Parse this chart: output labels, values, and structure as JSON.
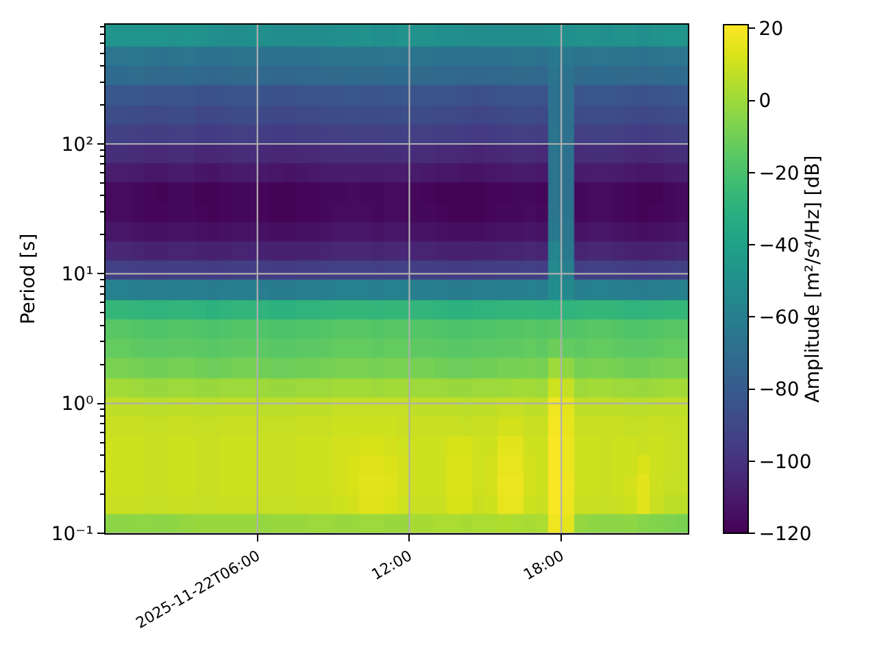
{
  "chart_data": {
    "type": "heatmap",
    "ylabel": "Period [s]",
    "clabel": "Amplitude [m²/s⁴/Hz] [dB]",
    "log": "y",
    "grid": true,
    "x": [
      "2025-11-22T00:15",
      "2025-11-22T00:45",
      "2025-11-22T01:15",
      "2025-11-22T01:45",
      "2025-11-22T02:15",
      "2025-11-22T02:45",
      "2025-11-22T03:15",
      "2025-11-22T03:45",
      "2025-11-22T04:15",
      "2025-11-22T04:45",
      "2025-11-22T05:15",
      "2025-11-22T05:45",
      "2025-11-22T06:15",
      "2025-11-22T06:45",
      "2025-11-22T07:15",
      "2025-11-22T07:45",
      "2025-11-22T08:15",
      "2025-11-22T08:45",
      "2025-11-22T09:15",
      "2025-11-22T09:45",
      "2025-11-22T10:15",
      "2025-11-22T10:45",
      "2025-11-22T11:15",
      "2025-11-22T11:45",
      "2025-11-22T12:15",
      "2025-11-22T12:45",
      "2025-11-22T13:15",
      "2025-11-22T13:45",
      "2025-11-22T14:15",
      "2025-11-22T14:45",
      "2025-11-22T15:15",
      "2025-11-22T15:45",
      "2025-11-22T16:15",
      "2025-11-22T16:45",
      "2025-11-22T17:15",
      "2025-11-22T17:45",
      "2025-11-22T18:15",
      "2025-11-22T18:45",
      "2025-11-22T19:15",
      "2025-11-22T19:45",
      "2025-11-22T20:15",
      "2025-11-22T20:45",
      "2025-11-22T21:15",
      "2025-11-22T21:45",
      "2025-11-22T22:15",
      "2025-11-22T22:45"
    ],
    "y": [
      668,
      473,
      335,
      237,
      168,
      119,
      84.1,
      59.6,
      42.2,
      29.9,
      21.1,
      15.0,
      10.6,
      7.5,
      5.31,
      3.76,
      2.66,
      1.88,
      1.33,
      0.944,
      0.668,
      0.473,
      0.335,
      0.237,
      0.168,
      0.119
    ],
    "cells": [
      [
        -48,
        -48,
        -47,
        -48,
        -48,
        -49,
        -48,
        -49,
        -50,
        -51,
        -51,
        -50,
        -50,
        -52,
        -52,
        -51,
        -52,
        -51,
        -50,
        -50,
        -49,
        -50,
        -50,
        -49,
        -49,
        -49,
        -50,
        -50,
        -51,
        -51,
        -52,
        -52,
        -51,
        -51,
        -51,
        -50,
        -50,
        -49,
        -49,
        -50,
        -49,
        -49,
        -50,
        -49,
        -48,
        -48
      ],
      [
        -65,
        -65,
        -64,
        -66,
        -67,
        -66,
        -65,
        -67,
        -68,
        -67,
        -66,
        -66,
        -67,
        -68,
        -68,
        -67,
        -67,
        -66,
        -66,
        -65,
        -66,
        -66,
        -65,
        -65,
        -66,
        -66,
        -67,
        -67,
        -68,
        -68,
        -67,
        -67,
        -66,
        -66,
        -67,
        -64,
        -64,
        -66,
        -65,
        -65,
        -66,
        -66,
        -67,
        -66,
        -65,
        -65
      ],
      [
        -71,
        -71,
        -70,
        -72,
        -73,
        -72,
        -71,
        -73,
        -74,
        -73,
        -72,
        -72,
        -73,
        -74,
        -74,
        -73,
        -73,
        -72,
        -72,
        -71,
        -72,
        -72,
        -71,
        -71,
        -72,
        -72,
        -73,
        -73,
        -74,
        -74,
        -73,
        -73,
        -72,
        -72,
        -73,
        -66,
        -67,
        -72,
        -71,
        -71,
        -72,
        -72,
        -73,
        -72,
        -71,
        -71
      ],
      [
        -82,
        -82,
        -82,
        -83,
        -84,
        -83,
        -83,
        -85,
        -85,
        -84,
        -83,
        -83,
        -84,
        -85,
        -85,
        -84,
        -84,
        -83,
        -83,
        -82,
        -83,
        -83,
        -82,
        -82,
        -83,
        -83,
        -84,
        -84,
        -85,
        -86,
        -85,
        -84,
        -83,
        -83,
        -84,
        -67,
        -68,
        -83,
        -82,
        -82,
        -83,
        -84,
        -85,
        -84,
        -83,
        -82
      ],
      [
        -87,
        -87,
        -88,
        -89,
        -89,
        -88,
        -88,
        -90,
        -90,
        -89,
        -88,
        -88,
        -89,
        -90,
        -90,
        -89,
        -89,
        -88,
        -88,
        -87,
        -88,
        -88,
        -87,
        -87,
        -88,
        -88,
        -89,
        -89,
        -90,
        -91,
        -90,
        -89,
        -88,
        -88,
        -89,
        -67,
        -68,
        -88,
        -87,
        -87,
        -88,
        -89,
        -90,
        -89,
        -88,
        -87
      ],
      [
        -93,
        -93,
        -94,
        -95,
        -95,
        -94,
        -94,
        -96,
        -96,
        -95,
        -94,
        -94,
        -95,
        -96,
        -96,
        -95,
        -95,
        -94,
        -94,
        -93,
        -94,
        -94,
        -93,
        -93,
        -94,
        -94,
        -95,
        -95,
        -96,
        -97,
        -96,
        -95,
        -94,
        -94,
        -95,
        -66,
        -68,
        -94,
        -93,
        -93,
        -94,
        -95,
        -96,
        -95,
        -94,
        -93
      ],
      [
        -102,
        -102,
        -103,
        -104,
        -104,
        -103,
        -103,
        -105,
        -105,
        -104,
        -103,
        -103,
        -104,
        -105,
        -105,
        -104,
        -104,
        -103,
        -103,
        -102,
        -103,
        -103,
        -102,
        -102,
        -103,
        -103,
        -104,
        -104,
        -105,
        -106,
        -105,
        -104,
        -103,
        -103,
        -104,
        -66,
        -67,
        -103,
        -102,
        -102,
        -103,
        -104,
        -105,
        -104,
        -103,
        -102
      ],
      [
        -109,
        -109,
        -110,
        -112,
        -112,
        -110,
        -110,
        -112,
        -113,
        -111,
        -110,
        -110,
        -111,
        -112,
        -113,
        -112,
        -111,
        -110,
        -110,
        -109,
        -110,
        -110,
        -109,
        -109,
        -110,
        -111,
        -112,
        -112,
        -113,
        -113,
        -112,
        -111,
        -110,
        -110,
        -111,
        -66,
        -67,
        -110,
        -109,
        -109,
        -110,
        -111,
        -112,
        -112,
        -110,
        -109
      ],
      [
        -116,
        -116,
        -117,
        -118,
        -119,
        -117,
        -117,
        -119,
        -119,
        -118,
        -117,
        -117,
        -118,
        -119,
        -119,
        -118,
        -118,
        -117,
        -117,
        -116,
        -117,
        -117,
        -116,
        -116,
        -117,
        -118,
        -119,
        -119,
        -119,
        -119,
        -118,
        -118,
        -117,
        -117,
        -118,
        -66,
        -67,
        -117,
        -116,
        -116,
        -117,
        -118,
        -119,
        -119,
        -117,
        -116
      ],
      [
        -116,
        -116,
        -117,
        -118,
        -118,
        -117,
        -117,
        -118,
        -119,
        -118,
        -117,
        -117,
        -118,
        -119,
        -119,
        -118,
        -118,
        -117,
        -116,
        -116,
        -116,
        -117,
        -116,
        -116,
        -117,
        -117,
        -118,
        -119,
        -119,
        -119,
        -118,
        -117,
        -117,
        -116,
        -117,
        -65,
        -66,
        -117,
        -116,
        -116,
        -117,
        -118,
        -119,
        -118,
        -117,
        -116
      ],
      [
        -112,
        -112,
        -113,
        -114,
        -114,
        -113,
        -113,
        -114,
        -115,
        -114,
        -113,
        -113,
        -114,
        -115,
        -115,
        -114,
        -114,
        -113,
        -112,
        -112,
        -112,
        -113,
        -112,
        -112,
        -113,
        -113,
        -114,
        -115,
        -115,
        -115,
        -114,
        -113,
        -113,
        -112,
        -113,
        -63,
        -65,
        -113,
        -112,
        -112,
        -113,
        -114,
        -115,
        -114,
        -113,
        -112
      ],
      [
        -105,
        -105,
        -106,
        -107,
        -107,
        -106,
        -106,
        -107,
        -108,
        -107,
        -106,
        -106,
        -107,
        -108,
        -108,
        -107,
        -107,
        -106,
        -105,
        -105,
        -105,
        -106,
        -105,
        -105,
        -106,
        -106,
        -107,
        -108,
        -108,
        -107,
        -107,
        -106,
        -106,
        -105,
        -106,
        -57,
        -63,
        -106,
        -105,
        -105,
        -106,
        -107,
        -108,
        -107,
        -106,
        -105
      ],
      [
        -93,
        -93,
        -94,
        -95,
        -95,
        -94,
        -94,
        -95,
        -96,
        -95,
        -94,
        -94,
        -95,
        -96,
        -96,
        -95,
        -95,
        -94,
        -93,
        -93,
        -93,
        -94,
        -93,
        -93,
        -94,
        -94,
        -95,
        -96,
        -96,
        -95,
        -95,
        -94,
        -94,
        -93,
        -94,
        -55,
        -60,
        -94,
        -93,
        -93,
        -94,
        -95,
        -96,
        -95,
        -94,
        -93
      ],
      [
        -59,
        -59,
        -60,
        -61,
        -61,
        -60,
        -60,
        -61,
        -62,
        -61,
        -60,
        -60,
        -61,
        -62,
        -62,
        -61,
        -61,
        -60,
        -59,
        -59,
        -59,
        -60,
        -59,
        -59,
        -60,
        -60,
        -61,
        -62,
        -62,
        -61,
        -61,
        -60,
        -60,
        -59,
        -60,
        -52,
        -54,
        -60,
        -59,
        -59,
        -60,
        -61,
        -62,
        -61,
        -60,
        -59
      ],
      [
        -27,
        -27,
        -28,
        -29,
        -29,
        -28,
        -28,
        -29,
        -30,
        -29,
        -28,
        -28,
        -29,
        -30,
        -30,
        -29,
        -29,
        -28,
        -27,
        -27,
        -27,
        -28,
        -27,
        -27,
        -28,
        -28,
        -29,
        -30,
        -30,
        -29,
        -29,
        -28,
        -28,
        -27,
        -28,
        -28,
        -29,
        -28,
        -27,
        -27,
        -28,
        -29,
        -29,
        -28,
        -27,
        -27
      ],
      [
        -16,
        -16,
        -17,
        -18,
        -18,
        -17,
        -17,
        -18,
        -19,
        -18,
        -17,
        -17,
        -18,
        -19,
        -19,
        -18,
        -18,
        -17,
        -16,
        -16,
        -16,
        -17,
        -16,
        -16,
        -17,
        -17,
        -18,
        -19,
        -19,
        -18,
        -18,
        -17,
        -17,
        -16,
        -17,
        -16,
        -18,
        -17,
        -16,
        -16,
        -17,
        -18,
        -18,
        -17,
        -16,
        -16
      ],
      [
        -13,
        -13,
        -14,
        -15,
        -15,
        -14,
        -14,
        -15,
        -16,
        -15,
        -14,
        -14,
        -15,
        -16,
        -16,
        -15,
        -15,
        -14,
        -13,
        -13,
        -13,
        -14,
        -13,
        -13,
        -14,
        -14,
        -15,
        -16,
        -16,
        -15,
        -15,
        -14,
        -14,
        -13,
        -14,
        -11,
        -13,
        -14,
        -13,
        -13,
        -14,
        -15,
        -15,
        -14,
        -13,
        -13
      ],
      [
        -8,
        -8,
        -9,
        -10,
        -10,
        -9,
        -9,
        -10,
        -11,
        -10,
        -9,
        -9,
        -10,
        -11,
        -11,
        -10,
        -10,
        -9,
        -8,
        -8,
        -8,
        -9,
        -8,
        -8,
        -9,
        -9,
        -10,
        -11,
        -11,
        -10,
        -10,
        -9,
        -9,
        -8,
        -9,
        0,
        -3,
        -9,
        -8,
        -8,
        -9,
        -10,
        -10,
        -9,
        -8,
        -8
      ],
      [
        1,
        1,
        0,
        -1,
        -1,
        0,
        0,
        -1,
        -1,
        0,
        0,
        0,
        0,
        -1,
        -1,
        0,
        0,
        0,
        1,
        1,
        1,
        0,
        1,
        1,
        0,
        0,
        0,
        -1,
        -1,
        0,
        0,
        0,
        1,
        1,
        0,
        10,
        8,
        0,
        1,
        1,
        0,
        0,
        -1,
        0,
        1,
        1
      ],
      [
        7,
        7,
        7,
        6,
        6,
        7,
        7,
        6,
        6,
        7,
        7,
        7,
        6,
        6,
        6,
        7,
        7,
        7,
        8,
        8,
        8,
        8,
        8,
        8,
        7,
        7,
        7,
        7,
        6,
        7,
        7,
        8,
        8,
        7,
        7,
        18,
        15,
        7,
        7,
        7,
        7,
        6,
        6,
        7,
        7,
        7
      ],
      [
        9,
        9,
        9,
        8,
        8,
        9,
        9,
        8,
        8,
        9,
        9,
        9,
        8,
        8,
        8,
        9,
        9,
        9,
        10,
        10,
        10,
        10,
        10,
        9,
        9,
        9,
        9,
        9,
        8,
        9,
        9,
        11,
        11,
        9,
        9,
        19,
        16,
        9,
        9,
        9,
        9,
        8,
        8,
        9,
        8,
        8
      ],
      [
        10,
        10,
        10,
        9,
        9,
        10,
        10,
        9,
        9,
        10,
        10,
        10,
        9,
        9,
        9,
        10,
        10,
        10,
        11,
        11,
        12,
        12,
        11,
        10,
        10,
        10,
        10,
        12,
        12,
        10,
        10,
        15,
        15,
        10,
        10,
        20,
        17,
        10,
        10,
        9,
        10,
        10,
        9,
        10,
        9,
        8
      ],
      [
        10,
        10,
        10,
        9,
        9,
        10,
        10,
        9,
        9,
        10,
        10,
        10,
        9,
        9,
        9,
        10,
        10,
        10,
        11,
        12,
        14,
        14,
        13,
        11,
        10,
        10,
        10,
        13,
        13,
        10,
        11,
        16,
        16,
        11,
        10,
        20,
        17,
        10,
        10,
        9,
        10,
        10,
        13,
        10,
        9,
        8
      ],
      [
        10,
        10,
        10,
        9,
        9,
        10,
        10,
        9,
        9,
        10,
        10,
        10,
        9,
        9,
        9,
        10,
        10,
        10,
        11,
        12,
        15,
        15,
        14,
        11,
        10,
        10,
        10,
        13,
        13,
        10,
        11,
        17,
        17,
        11,
        10,
        20,
        18,
        10,
        10,
        9,
        10,
        11,
        15,
        10,
        8,
        8
      ],
      [
        9,
        9,
        9,
        8,
        8,
        9,
        9,
        8,
        8,
        9,
        9,
        9,
        8,
        8,
        8,
        9,
        9,
        9,
        10,
        11,
        14,
        14,
        13,
        10,
        9,
        9,
        9,
        12,
        12,
        9,
        10,
        16,
        16,
        10,
        9,
        20,
        17,
        9,
        9,
        8,
        9,
        10,
        15,
        9,
        7,
        6
      ],
      [
        -4,
        -4,
        -3,
        -3,
        -4,
        -3,
        -2,
        -1,
        -1,
        -1,
        -1,
        -1,
        -2,
        -1,
        -1,
        -1,
        0,
        0,
        -1,
        -1,
        0,
        0,
        -1,
        -1,
        2,
        2,
        3,
        3,
        2,
        3,
        3,
        4,
        3,
        2,
        3,
        18,
        15,
        -2,
        -3,
        -4,
        -4,
        -3,
        -5,
        -6,
        -7,
        -8
      ]
    ],
    "xlim": [
      "2025-11-22T00:00",
      "2025-11-22T23:00"
    ],
    "xticks": [
      "2025-11-22T06:00",
      {
        "value": "2025-11-22T12:00",
        "label": "12:00"
      },
      {
        "value": "2025-11-22T18:00",
        "label": "18:00"
      }
    ],
    "ylim": [
      0.1,
      830
    ],
    "yticks": [
      {
        "value": 0.1,
        "label": "10⁻¹"
      },
      {
        "value": 0.2,
        "label": null
      },
      {
        "value": 0.3,
        "label": null
      },
      {
        "value": 0.4,
        "label": null
      },
      {
        "value": 0.5,
        "label": null
      },
      {
        "value": 0.6,
        "label": null
      },
      {
        "value": 0.7,
        "label": null
      },
      {
        "value": 0.8,
        "label": null
      },
      {
        "value": 0.9,
        "label": null
      },
      {
        "value": 1,
        "label": "10⁰"
      },
      {
        "value": 2,
        "label": null
      },
      {
        "value": 3,
        "label": null
      },
      {
        "value": 4,
        "label": null
      },
      {
        "value": 5,
        "label": null
      },
      {
        "value": 6,
        "label": null
      },
      {
        "value": 7,
        "label": null
      },
      {
        "value": 8,
        "label": null
      },
      {
        "value": 9,
        "label": null
      },
      {
        "value": 10,
        "label": "10¹"
      },
      {
        "value": 20,
        "label": null
      },
      {
        "value": 30,
        "label": null
      },
      {
        "value": 40,
        "label": null
      },
      {
        "value": 50,
        "label": null
      },
      {
        "value": 60,
        "label": null
      },
      {
        "value": 70,
        "label": null
      },
      {
        "value": 80,
        "label": null
      },
      {
        "value": 90,
        "label": null
      },
      {
        "value": 100,
        "label": "10²"
      },
      {
        "value": 200,
        "label": null
      },
      {
        "value": 300,
        "label": null
      },
      {
        "value": 400,
        "label": null
      },
      {
        "value": 500,
        "label": null
      },
      {
        "value": 600,
        "label": null
      },
      {
        "value": 700,
        "label": null
      },
      {
        "value": 800,
        "label": null
      }
    ],
    "clim": [
      -120,
      21
    ],
    "cticks": [
      {
        "value": -120,
        "label": "−120"
      },
      {
        "value": -100,
        "label": "−100"
      },
      {
        "value": -80,
        "label": "−80"
      },
      {
        "value": -60,
        "label": "−60"
      },
      {
        "value": -40,
        "label": "−40"
      },
      {
        "value": -20,
        "label": "−20"
      },
      0,
      20
    ]
  }
}
